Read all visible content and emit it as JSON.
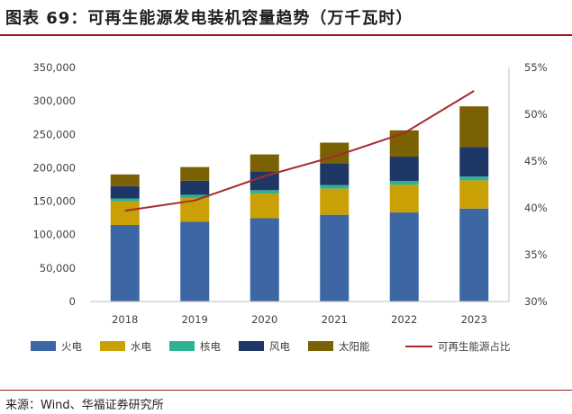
{
  "title": "图表 69：可再生能源发电装机容量趋势（万千瓦时）",
  "source": "来源：Wind、华福证券研究所",
  "colors": {
    "火电": "#3c67a4",
    "水电": "#c9a006",
    "核电": "#2db394",
    "风电": "#1e3766",
    "太阳能": "#7a6104",
    "可再生能源占比": "#a62a2e"
  },
  "chart_data": {
    "type": "bar",
    "stacked": true,
    "categories": [
      "2018",
      "2019",
      "2020",
      "2021",
      "2022",
      "2023"
    ],
    "series": [
      {
        "name": "火电",
        "values": [
          114400,
          119100,
          124500,
          129700,
          133200,
          139000
        ]
      },
      {
        "name": "水电",
        "values": [
          35200,
          35600,
          37000,
          39100,
          41400,
          42200
        ]
      },
      {
        "name": "核电",
        "values": [
          4500,
          4900,
          5000,
          5300,
          5600,
          5700
        ]
      },
      {
        "name": "风电",
        "values": [
          18400,
          21000,
          28200,
          32800,
          36500,
          44100
        ]
      },
      {
        "name": "太阳能",
        "values": [
          17500,
          20500,
          25300,
          30700,
          39300,
          60900
        ]
      }
    ],
    "line": {
      "name": "可再生能源占比",
      "values": [
        39.7,
        40.8,
        43.4,
        45.5,
        48.0,
        52.5
      ]
    },
    "y_ticks": [
      "0",
      "50,000",
      "100,000",
      "150,000",
      "200,000",
      "250,000",
      "300,000",
      "350,000"
    ],
    "y2_ticks": [
      "30%",
      "35%",
      "40%",
      "45%",
      "50%",
      "55%"
    ],
    "ylim": [
      0,
      350000
    ],
    "y2lim": [
      30,
      55
    ],
    "legend_position": "bottom"
  }
}
